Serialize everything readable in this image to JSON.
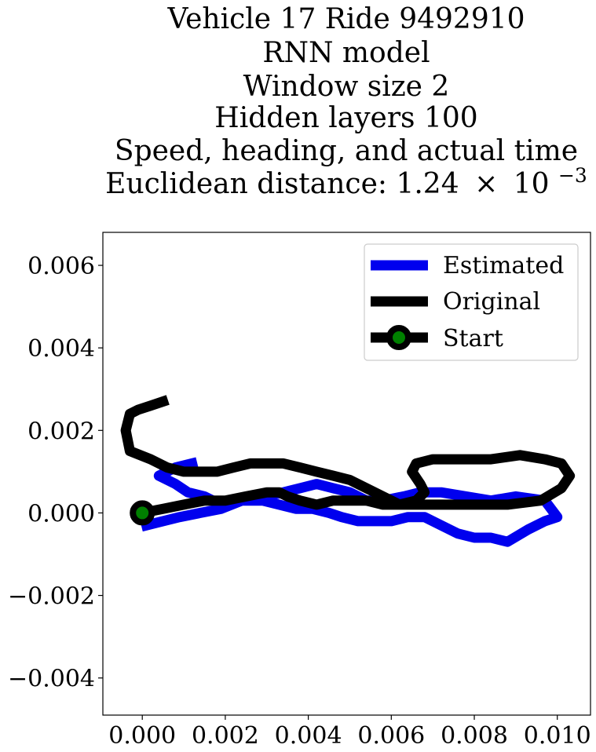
{
  "chart_data": {
    "type": "line",
    "title_lines": [
      "Vehicle 17 Ride 9492910",
      "RNN model",
      "Window size 2",
      "Hidden layers 100",
      "Speed, heading, and actual time"
    ],
    "title_distance_prefix": "Euclidean distance: 1.24",
    "title_distance_times": "×",
    "title_distance_base": "10",
    "title_distance_exponent": "−3",
    "xlabel": "",
    "ylabel": "",
    "xlim": [
      -0.00095,
      0.0108
    ],
    "ylim": [
      -0.0049,
      0.0068
    ],
    "x_ticks": [
      0.0,
      0.002,
      0.004,
      0.006,
      0.008,
      0.01
    ],
    "x_tick_labels": [
      "0.000",
      "0.002",
      "0.004",
      "0.006",
      "0.008",
      "0.010"
    ],
    "y_ticks": [
      -0.004,
      -0.002,
      0.0,
      0.002,
      0.004,
      0.006
    ],
    "y_tick_labels": [
      "−0.004",
      "−0.002",
      "0.000",
      "0.002",
      "0.004",
      "0.006"
    ],
    "grid": false,
    "legend_position": "top-right",
    "legend": [
      {
        "label": "Estimated",
        "color": "#0000ee",
        "marker": false
      },
      {
        "label": "Original",
        "color": "#000000",
        "marker": false
      },
      {
        "label": "Start",
        "color": "#000000",
        "marker": true,
        "marker_face": "#008000"
      }
    ],
    "series": [
      {
        "name": "Estimated",
        "color": "#0000ee",
        "points": [
          [
            0.0001,
            -0.0003
          ],
          [
            0.0005,
            -0.0002
          ],
          [
            0.0009,
            -0.0001
          ],
          [
            0.0014,
            0.0
          ],
          [
            0.0019,
            0.0001
          ],
          [
            0.0024,
            0.0003
          ],
          [
            0.0029,
            0.0003
          ],
          [
            0.0033,
            0.0002
          ],
          [
            0.0037,
            0.0001
          ],
          [
            0.0041,
            0.0001
          ],
          [
            0.0045,
            0.0
          ],
          [
            0.0048,
            -0.0001
          ],
          [
            0.0052,
            -0.0002
          ],
          [
            0.0056,
            -0.0002
          ],
          [
            0.006,
            -0.0002
          ],
          [
            0.0064,
            -0.0001
          ],
          [
            0.0068,
            -0.0001
          ],
          [
            0.0072,
            -0.0003
          ],
          [
            0.0076,
            -0.0005
          ],
          [
            0.008,
            -0.0006
          ],
          [
            0.0084,
            -0.0006
          ],
          [
            0.0088,
            -0.0007
          ],
          [
            0.0093,
            -0.0004
          ],
          [
            0.0097,
            -0.0002
          ],
          [
            0.01,
            -0.0001
          ],
          [
            0.0097,
            0.0003
          ],
          [
            0.009,
            0.0004
          ],
          [
            0.0084,
            0.0003
          ],
          [
            0.0078,
            0.0004
          ],
          [
            0.0072,
            0.0005
          ],
          [
            0.0067,
            0.0005
          ],
          [
            0.0063,
            0.0004
          ],
          [
            0.0058,
            0.0003
          ],
          [
            0.0054,
            0.0003
          ],
          [
            0.005,
            0.0005
          ],
          [
            0.0046,
            0.0006
          ],
          [
            0.0042,
            0.0007
          ],
          [
            0.0038,
            0.0006
          ],
          [
            0.0034,
            0.0005
          ],
          [
            0.003,
            0.0004
          ],
          [
            0.0026,
            0.0004
          ],
          [
            0.0022,
            0.0003
          ],
          [
            0.0019,
            0.0002
          ],
          [
            0.0015,
            0.0004
          ],
          [
            0.0011,
            0.0005
          ],
          [
            0.0008,
            0.0007
          ],
          [
            0.0004,
            0.0009
          ],
          [
            0.0008,
            0.0011
          ],
          [
            0.0012,
            0.0012
          ]
        ]
      },
      {
        "name": "Original",
        "color": "#000000",
        "points": [
          [
            0.0,
            0.0
          ],
          [
            0.0005,
            0.0001
          ],
          [
            0.001,
            0.0002
          ],
          [
            0.0015,
            0.0003
          ],
          [
            0.002,
            0.0003
          ],
          [
            0.0025,
            0.0004
          ],
          [
            0.003,
            0.0005
          ],
          [
            0.0033,
            0.0005
          ],
          [
            0.0035,
            0.0004
          ],
          [
            0.0038,
            0.0003
          ],
          [
            0.0042,
            0.0002
          ],
          [
            0.0046,
            0.0003
          ],
          [
            0.005,
            0.0003
          ],
          [
            0.0054,
            0.0003
          ],
          [
            0.0058,
            0.0002
          ],
          [
            0.0062,
            0.0002
          ],
          [
            0.0066,
            0.0002
          ],
          [
            0.007,
            0.0002
          ],
          [
            0.0078,
            0.0002
          ],
          [
            0.0088,
            0.0002
          ],
          [
            0.0096,
            0.0003
          ],
          [
            0.0101,
            0.0006
          ],
          [
            0.0103,
            0.0009
          ],
          [
            0.0101,
            0.0012
          ],
          [
            0.0097,
            0.0013
          ],
          [
            0.0091,
            0.0014
          ],
          [
            0.0084,
            0.0013
          ],
          [
            0.0077,
            0.0013
          ],
          [
            0.007,
            0.0013
          ],
          [
            0.0066,
            0.0012
          ],
          [
            0.0065,
            0.001
          ],
          [
            0.0067,
            0.0007
          ],
          [
            0.0068,
            0.0005
          ],
          [
            0.0066,
            0.0003
          ],
          [
            0.0062,
            0.0002
          ],
          [
            0.0058,
            0.0004
          ],
          [
            0.0054,
            0.0006
          ],
          [
            0.005,
            0.0008
          ],
          [
            0.0046,
            0.0009
          ],
          [
            0.0042,
            0.001
          ],
          [
            0.0038,
            0.0011
          ],
          [
            0.0034,
            0.0012
          ],
          [
            0.003,
            0.0012
          ],
          [
            0.0026,
            0.0012
          ],
          [
            0.0022,
            0.0011
          ],
          [
            0.0018,
            0.001
          ],
          [
            0.0014,
            0.001
          ],
          [
            0.001,
            0.001
          ],
          [
            0.0006,
            0.0011
          ],
          [
            0.0002,
            0.0013
          ],
          [
            -0.0003,
            0.0015
          ],
          [
            -0.0004,
            0.002
          ],
          [
            -0.0003,
            0.0024
          ],
          [
            -0.0001,
            0.0025
          ],
          [
            0.0002,
            0.0026
          ],
          [
            0.0005,
            0.0027
          ]
        ]
      }
    ],
    "start_point": {
      "name": "Start",
      "x": 0.0,
      "y": 0.0,
      "color": "#000000",
      "face_color": "#008000"
    }
  }
}
